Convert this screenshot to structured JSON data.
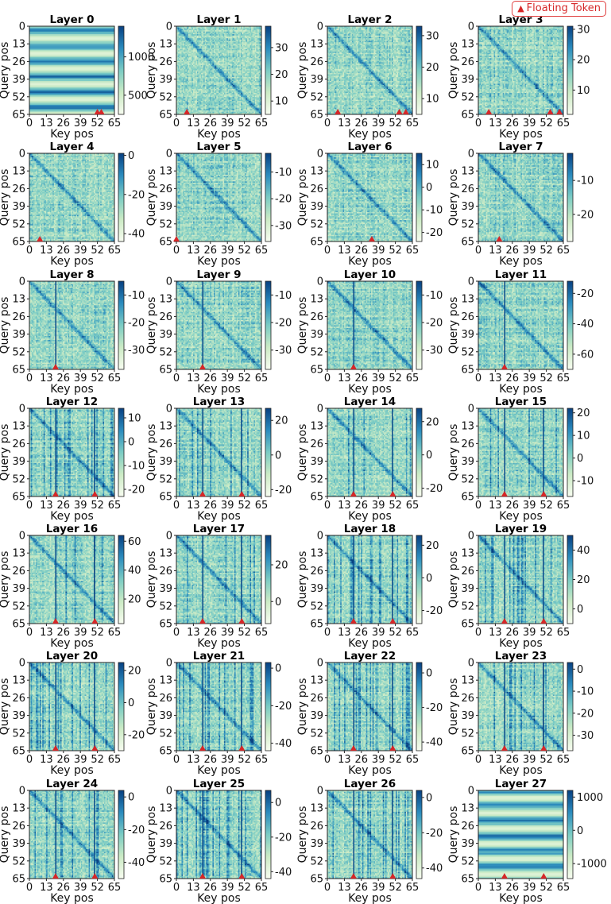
{
  "legend": {
    "label": "Floating Token",
    "symbol": "▲",
    "color": "#d62728"
  },
  "chart_data": {
    "type": "heatmap",
    "layout": "7x4 grid of attention heatmaps",
    "xlabel": "Key pos",
    "ylabel": "Query pos",
    "ticks": [
      0,
      13,
      26,
      39,
      52,
      65
    ],
    "xlim": [
      0,
      65
    ],
    "ylim": [
      65,
      0
    ],
    "colormap": "GnBu",
    "colormap_stops": [
      "#f7fcf0",
      "#ccebc5",
      "#7bccc4",
      "#2b8cbe",
      "#084081"
    ],
    "marker_color": "#d62728",
    "panels": [
      {
        "title": "Layer 0",
        "colorbar_ticks": [
          1000,
          500
        ],
        "clim": [
          250,
          1400
        ],
        "floating_tokens": [
          52,
          55
        ]
      },
      {
        "title": "Layer 1",
        "colorbar_ticks": [
          30,
          20,
          10
        ],
        "clim": [
          5,
          38
        ],
        "floating_tokens": [
          8
        ]
      },
      {
        "title": "Layer 2",
        "colorbar_ticks": [
          30,
          20,
          10
        ],
        "clim": [
          5,
          33
        ],
        "floating_tokens": [
          8,
          55,
          60
        ]
      },
      {
        "title": "Layer 3",
        "colorbar_ticks": [
          30,
          20,
          10
        ],
        "clim": [
          2,
          31
        ],
        "floating_tokens": [
          8,
          55,
          62
        ]
      },
      {
        "title": "Layer 4",
        "colorbar_ticks": [
          0,
          -20,
          -40
        ],
        "clim": [
          -44,
          1
        ],
        "floating_tokens": [
          8
        ]
      },
      {
        "title": "Layer 5",
        "colorbar_ticks": [
          -10,
          -20,
          -30
        ],
        "clim": [
          -36,
          -3
        ],
        "floating_tokens": [
          0
        ]
      },
      {
        "title": "Layer 6",
        "colorbar_ticks": [
          10,
          0,
          -10,
          -20
        ],
        "clim": [
          -24,
          15
        ],
        "floating_tokens": [
          34
        ]
      },
      {
        "title": "Layer 7",
        "colorbar_ticks": [
          -10,
          -20
        ],
        "clim": [
          -28,
          -2
        ],
        "floating_tokens": [
          16
        ]
      },
      {
        "title": "Layer 8",
        "colorbar_ticks": [
          -10,
          -20,
          -30
        ],
        "clim": [
          -37,
          -5
        ],
        "floating_tokens": [
          20
        ]
      },
      {
        "title": "Layer 9",
        "colorbar_ticks": [
          -10,
          -20,
          -30
        ],
        "clim": [
          -37,
          -5
        ],
        "floating_tokens": [
          20
        ]
      },
      {
        "title": "Layer 10",
        "colorbar_ticks": [
          -10,
          -20,
          -30
        ],
        "clim": [
          -37,
          -5
        ],
        "floating_tokens": [
          20
        ]
      },
      {
        "title": "Layer 11",
        "colorbar_ticks": [
          -20,
          -40,
          -60
        ],
        "clim": [
          -70,
          -12
        ],
        "floating_tokens": [
          20
        ]
      },
      {
        "title": "Layer 12",
        "colorbar_ticks": [
          10,
          0,
          -10,
          -20
        ],
        "clim": [
          -23,
          14
        ],
        "floating_tokens": [
          20,
          50
        ]
      },
      {
        "title": "Layer 13",
        "colorbar_ticks": [
          20,
          0,
          -20
        ],
        "clim": [
          -24,
          27
        ],
        "floating_tokens": [
          20,
          50
        ]
      },
      {
        "title": "Layer 14",
        "colorbar_ticks": [
          20,
          0,
          -20
        ],
        "clim": [
          -25,
          28
        ],
        "floating_tokens": [
          20,
          50
        ]
      },
      {
        "title": "Layer 15",
        "colorbar_ticks": [
          20,
          10,
          0,
          -10
        ],
        "clim": [
          -17,
          22
        ],
        "floating_tokens": [
          20,
          50
        ]
      },
      {
        "title": "Layer 16",
        "colorbar_ticks": [
          60,
          40,
          20
        ],
        "clim": [
          3,
          64
        ],
        "floating_tokens": [
          20,
          50
        ]
      },
      {
        "title": "Layer 17",
        "colorbar_ticks": [
          20,
          0
        ],
        "clim": [
          -12,
          36
        ],
        "floating_tokens": [
          20,
          50
        ]
      },
      {
        "title": "Layer 18",
        "colorbar_ticks": [
          20,
          0,
          -20
        ],
        "clim": [
          -28,
          26
        ],
        "floating_tokens": [
          20,
          50
        ]
      },
      {
        "title": "Layer 19",
        "colorbar_ticks": [
          40,
          20,
          0
        ],
        "clim": [
          -10,
          50
        ],
        "floating_tokens": [
          20,
          50
        ]
      },
      {
        "title": "Layer 20",
        "colorbar_ticks": [
          20,
          0,
          -20
        ],
        "clim": [
          -30,
          25
        ],
        "floating_tokens": [
          20,
          50
        ]
      },
      {
        "title": "Layer 21",
        "colorbar_ticks": [
          0,
          -20,
          -40
        ],
        "clim": [
          -44,
          3
        ],
        "floating_tokens": [
          20,
          50
        ]
      },
      {
        "title": "Layer 22",
        "colorbar_ticks": [
          0,
          -20,
          -40
        ],
        "clim": [
          -45,
          6
        ],
        "floating_tokens": [
          20,
          50
        ]
      },
      {
        "title": "Layer 23",
        "colorbar_ticks": [
          0,
          -10,
          -20,
          -30
        ],
        "clim": [
          -37,
          3
        ],
        "floating_tokens": [
          20,
          50
        ]
      },
      {
        "title": "Layer 24",
        "colorbar_ticks": [
          0,
          -20,
          -40
        ],
        "clim": [
          -50,
          4
        ],
        "floating_tokens": [
          20,
          50
        ]
      },
      {
        "title": "Layer 25",
        "colorbar_ticks": [
          0,
          -20,
          -40
        ],
        "clim": [
          -44,
          7
        ],
        "floating_tokens": [
          20,
          50
        ]
      },
      {
        "title": "Layer 26",
        "colorbar_ticks": [
          0,
          -20,
          -40
        ],
        "clim": [
          -46,
          4
        ],
        "floating_tokens": [
          20,
          50
        ]
      },
      {
        "title": "Layer 27",
        "colorbar_ticks": [
          1000,
          0,
          -1000
        ],
        "clim": [
          -1450,
          1200
        ],
        "floating_tokens": [
          20,
          50
        ]
      }
    ]
  }
}
